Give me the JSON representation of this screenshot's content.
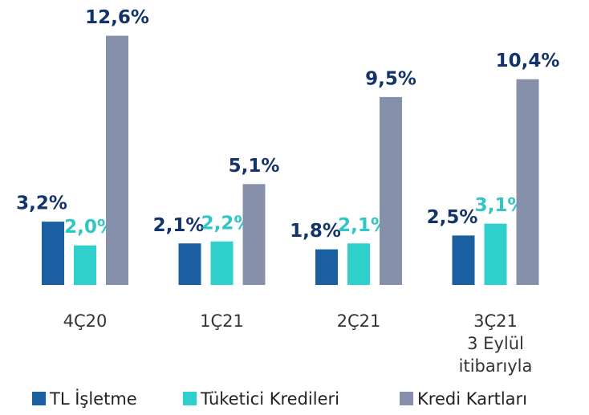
{
  "chart_data": {
    "type": "bar",
    "categories": [
      "4Ç20",
      "1Ç21",
      "2Ç21",
      "3Ç21\n3 Eylül\nitibarıyla"
    ],
    "series": [
      {
        "name": "TL İşletme",
        "color": "#1a5fa2",
        "label_color": "#14336b",
        "values": [
          3.2,
          2.1,
          1.8,
          2.5
        ],
        "value_labels": [
          "3,2%",
          "2,1%",
          "1,8%",
          "2,5%"
        ]
      },
      {
        "name": "Tüketici Kredileri",
        "color": "#2fd0cb",
        "label_color": "#2fc6c4",
        "values": [
          2.0,
          2.2,
          2.1,
          3.1
        ],
        "value_labels": [
          "2,0%",
          "2,2%",
          "2,1%",
          "3,1%"
        ]
      },
      {
        "name": "Kredi Kartları",
        "color": "#8790ab",
        "label_color": "#14336b",
        "values": [
          12.6,
          5.1,
          9.5,
          10.4
        ],
        "value_labels": [
          "12,6%",
          "5,1%",
          "9,5%",
          "10,4%"
        ]
      }
    ],
    "ylim": [
      0,
      14
    ],
    "legend": "bottom"
  }
}
